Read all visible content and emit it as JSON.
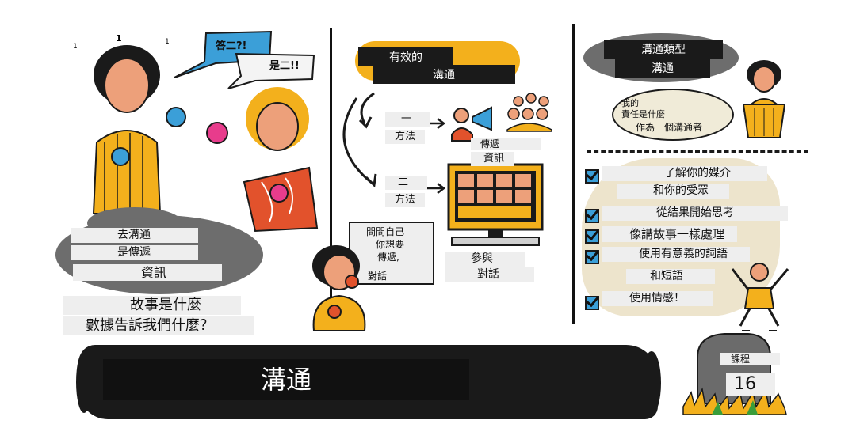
{
  "top_marks": [
    "1",
    "1",
    "1"
  ],
  "left": {
    "speech_bubble_1": "答二?!",
    "speech_bubble_2": "是二!!",
    "cloud_lines": [
      "去溝通",
      "是傳遞",
      "資訊"
    ],
    "caption_lines": [
      "故事是什麼",
      "數據告訴我們什麼？"
    ]
  },
  "middle": {
    "title_lines": [
      "有效的",
      "溝通"
    ],
    "method1": [
      "一",
      "方法"
    ],
    "transmit": [
      "傳遞",
      "資訊"
    ],
    "method2": [
      "二",
      "方法"
    ],
    "ask_box": [
      "問問自己",
      "你想要",
      "傳遞,",
      "對話"
    ],
    "participate": [
      "參與",
      "對話"
    ]
  },
  "right": {
    "title_lines": [
      "溝通類型",
      "溝通"
    ],
    "thought": [
      "我的",
      "責任是什麼",
      "作為一個溝通者"
    ],
    "checklist": [
      "了解你的媒介",
      "和你的受眾",
      "從結果開始思考",
      "像講故事一樣處理",
      "使用有意義的詞語",
      "和短語",
      "使用情感！"
    ]
  },
  "banner": {
    "title": "溝通"
  },
  "lesson": {
    "label": "課程",
    "number": "16"
  },
  "colors": {
    "dark": "#1a1a1a",
    "yellow": "#f3b01c",
    "skin": "#eda07a",
    "blue": "#3b9fd8",
    "pink": "#e83c8c",
    "orange_red": "#e2522c",
    "cloud_gray": "#6d6d6d",
    "tan": "#ede4cc",
    "stone": "#6b6b6b"
  }
}
